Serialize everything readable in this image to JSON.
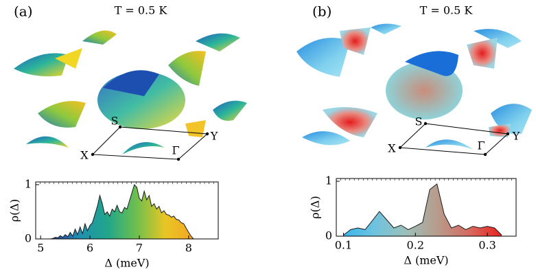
{
  "chart_data": [
    {
      "type": "area",
      "panel_label": "(a)",
      "title": "T = 0.5 K",
      "bz_labels": [
        "S",
        "Y",
        "X",
        "Γ"
      ],
      "x_label": "Δ (meV)",
      "y_label": "ρ(Δ)",
      "colormap": [
        "#2c3c9c",
        "#1f8fb0",
        "#21a68a",
        "#6dbf4e",
        "#e8c624",
        "#f5a623"
      ],
      "x": [
        5.2,
        5.25,
        5.3,
        5.35,
        5.4,
        5.45,
        5.5,
        5.55,
        5.6,
        5.65,
        5.7,
        5.75,
        5.8,
        5.85,
        5.9,
        5.95,
        6.0,
        6.05,
        6.1,
        6.15,
        6.2,
        6.25,
        6.3,
        6.35,
        6.4,
        6.45,
        6.5,
        6.55,
        6.6,
        6.65,
        6.7,
        6.75,
        6.8,
        6.85,
        6.9,
        6.95,
        7.0,
        7.05,
        7.1,
        7.15,
        7.2,
        7.25,
        7.3,
        7.35,
        7.4,
        7.45,
        7.5,
        7.55,
        7.6,
        7.65,
        7.7,
        7.75,
        7.8,
        7.85,
        7.9,
        7.95,
        8.0,
        8.05,
        8.1
      ],
      "values": [
        0.0,
        0.01,
        0.03,
        0.02,
        0.06,
        0.03,
        0.08,
        0.04,
        0.12,
        0.05,
        0.18,
        0.08,
        0.22,
        0.1,
        0.28,
        0.15,
        0.25,
        0.3,
        0.45,
        0.6,
        0.8,
        0.65,
        0.45,
        0.5,
        0.42,
        0.55,
        0.5,
        0.62,
        0.5,
        0.48,
        0.58,
        0.55,
        0.7,
        0.85,
        1.0,
        0.95,
        0.75,
        0.7,
        0.88,
        0.72,
        0.8,
        0.6,
        0.65,
        0.55,
        0.6,
        0.48,
        0.52,
        0.45,
        0.44,
        0.4,
        0.42,
        0.36,
        0.35,
        0.3,
        0.28,
        0.2,
        0.12,
        0.05,
        0.0
      ],
      "xlim": [
        4.9,
        8.6
      ],
      "xticks": [
        5,
        6,
        7,
        8
      ],
      "ylim": [
        0,
        1.05
      ],
      "yticks": [
        0,
        1
      ]
    },
    {
      "type": "area",
      "panel_label": "(b)",
      "title": "T = 0.5 K",
      "bz_labels": [
        "S",
        "Y",
        "X",
        "Γ"
      ],
      "x_label": "Δ (meV)",
      "y_label": "ρ(Δ)",
      "colormap": [
        "#38b6ec",
        "#6fc3de",
        "#9cbfb8",
        "#b89a8a",
        "#d7685e",
        "#e8231e"
      ],
      "x": [
        0.1,
        0.11,
        0.12,
        0.13,
        0.14,
        0.15,
        0.16,
        0.17,
        0.18,
        0.19,
        0.2,
        0.21,
        0.22,
        0.23,
        0.24,
        0.25,
        0.26,
        0.27,
        0.28,
        0.29,
        0.3,
        0.31,
        0.32
      ],
      "values": [
        0.02,
        0.12,
        0.15,
        0.12,
        0.28,
        0.45,
        0.3,
        0.15,
        0.2,
        0.12,
        0.18,
        0.25,
        0.85,
        0.95,
        0.4,
        0.15,
        0.2,
        0.12,
        0.18,
        0.15,
        0.18,
        0.15,
        0.02
      ],
      "xlim": [
        0.09,
        0.34
      ],
      "xticks": [
        0.1,
        0.2,
        0.3
      ],
      "ylim": [
        0,
        1.05
      ],
      "yticks": [
        0,
        1
      ]
    }
  ]
}
